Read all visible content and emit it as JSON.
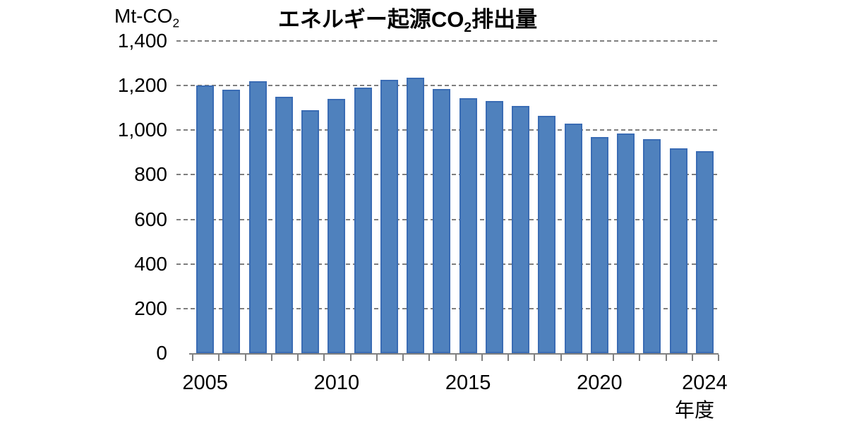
{
  "chart_data": {
    "type": "bar",
    "title": "エネルギー起源CO2排出量",
    "title_parts": {
      "pre": "エネルギー起源CO",
      "sub": "2",
      "post": "排出量"
    },
    "unit_label": "Mt-CO2",
    "unit_parts": {
      "pre": "Mt-CO",
      "sub": "2"
    },
    "xlabel": "年度",
    "categories": [
      2005,
      2006,
      2007,
      2008,
      2009,
      2010,
      2011,
      2012,
      2013,
      2014,
      2015,
      2016,
      2017,
      2018,
      2019,
      2020,
      2021,
      2022,
      2023,
      2024
    ],
    "values": [
      1200,
      1180,
      1220,
      1150,
      1090,
      1140,
      1190,
      1225,
      1235,
      1185,
      1145,
      1130,
      1110,
      1065,
      1030,
      970,
      985,
      960,
      920,
      905
    ],
    "ylim": [
      0,
      1400
    ],
    "ytick_interval": 200,
    "yticks": [
      {
        "value": 0,
        "label": "0"
      },
      {
        "value": 200,
        "label": "200"
      },
      {
        "value": 400,
        "label": "400"
      },
      {
        "value": 600,
        "label": "600"
      },
      {
        "value": 800,
        "label": "800"
      },
      {
        "value": 1000,
        "label": "1,000"
      },
      {
        "value": 1200,
        "label": "1,200"
      },
      {
        "value": 1400,
        "label": "1,400"
      }
    ],
    "xticks": [
      {
        "slot": 0,
        "label": "2005"
      },
      {
        "slot": 5,
        "label": "2010"
      },
      {
        "slot": 10,
        "label": "2015"
      },
      {
        "slot": 15,
        "label": "2020"
      },
      {
        "slot": 19,
        "label": "2024"
      }
    ],
    "grid": "dashed-horizontal",
    "legend": "none",
    "colors": {
      "bar_fill": "#4F81BD",
      "bar_border": "#3A6CB4",
      "gridline": "#7F7F7F",
      "axis": "#808080",
      "text": "#000000",
      "background": "#FFFFFF"
    }
  }
}
